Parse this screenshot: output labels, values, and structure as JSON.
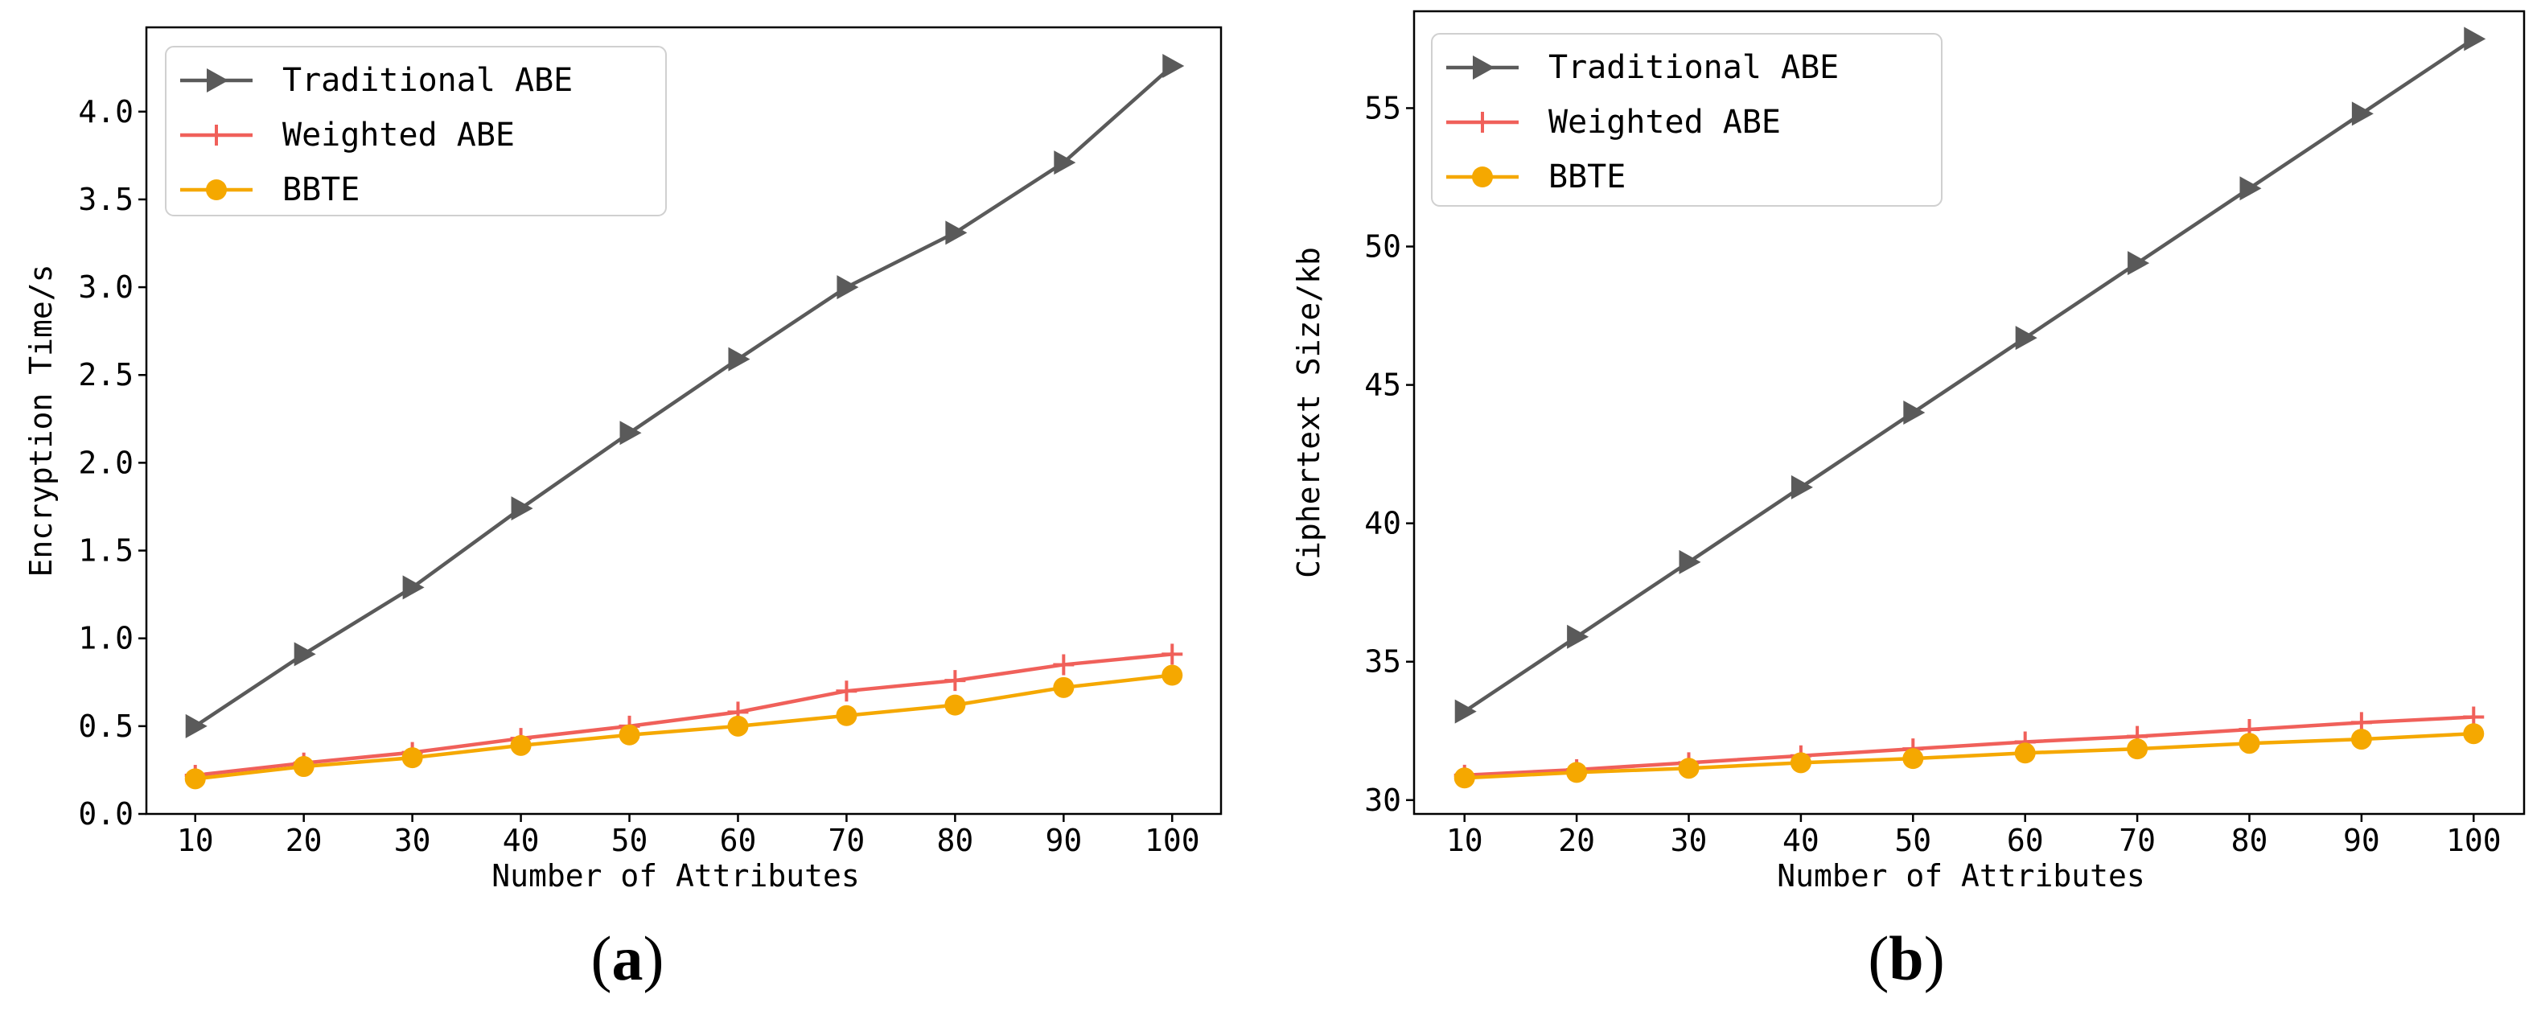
{
  "chart_data": [
    {
      "type": "line",
      "panel_label": "a",
      "xlabel": "Number of Attributes",
      "ylabel": "Encryption Time/s",
      "x": [
        10,
        20,
        30,
        40,
        50,
        60,
        70,
        80,
        90,
        100
      ],
      "xlim": [
        5.5,
        104.5
      ],
      "ylim": [
        0.0,
        4.48
      ],
      "xticks": [
        10,
        20,
        30,
        40,
        50,
        60,
        70,
        80,
        90,
        100
      ],
      "yticks": [
        0.0,
        0.5,
        1.0,
        1.5,
        2.0,
        2.5,
        3.0,
        3.5,
        4.0
      ],
      "ytick_labels": [
        "0.0",
        "0.5",
        "1.0",
        "1.5",
        "2.0",
        "2.5",
        "3.0",
        "3.5",
        "4.0"
      ],
      "legend_position": "top-left",
      "series": [
        {
          "name": "Traditional ABE",
          "color": "#5a5a5a",
          "marker": "triangle-right",
          "values": [
            0.5,
            0.91,
            1.29,
            1.74,
            2.17,
            2.59,
            3.0,
            3.31,
            3.71,
            4.26
          ]
        },
        {
          "name": "Weighted ABE",
          "color": "#f0605a",
          "marker": "plus",
          "values": [
            0.22,
            0.29,
            0.35,
            0.43,
            0.5,
            0.58,
            0.7,
            0.76,
            0.85,
            0.91
          ]
        },
        {
          "name": "BBTE",
          "color": "#f5a800",
          "marker": "circle",
          "values": [
            0.2,
            0.27,
            0.32,
            0.39,
            0.45,
            0.5,
            0.56,
            0.62,
            0.72,
            0.79
          ]
        }
      ]
    },
    {
      "type": "line",
      "panel_label": "b",
      "xlabel": "Number of Attributes",
      "ylabel": "Ciphertext Size/kb",
      "x": [
        10,
        20,
        30,
        40,
        50,
        60,
        70,
        80,
        90,
        100
      ],
      "xlim": [
        5.5,
        104.5
      ],
      "ylim": [
        29.5,
        58.5
      ],
      "xticks": [
        10,
        20,
        30,
        40,
        50,
        60,
        70,
        80,
        90,
        100
      ],
      "yticks": [
        30,
        35,
        40,
        45,
        50,
        55
      ],
      "ytick_labels": [
        "30",
        "35",
        "40",
        "45",
        "50",
        "55"
      ],
      "legend_position": "top-left",
      "series": [
        {
          "name": "Traditional ABE",
          "color": "#5a5a5a",
          "marker": "triangle-right",
          "values": [
            33.2,
            35.9,
            38.6,
            41.3,
            44.0,
            46.7,
            49.4,
            52.1,
            54.8,
            57.5
          ]
        },
        {
          "name": "Weighted ABE",
          "color": "#f0605a",
          "marker": "plus",
          "values": [
            30.9,
            31.1,
            31.35,
            31.6,
            31.85,
            32.1,
            32.3,
            32.55,
            32.8,
            33.0
          ]
        },
        {
          "name": "BBTE",
          "color": "#f5a800",
          "marker": "circle",
          "values": [
            30.8,
            31.0,
            31.15,
            31.35,
            31.5,
            31.7,
            31.85,
            32.05,
            32.2,
            32.4
          ]
        }
      ]
    }
  ]
}
